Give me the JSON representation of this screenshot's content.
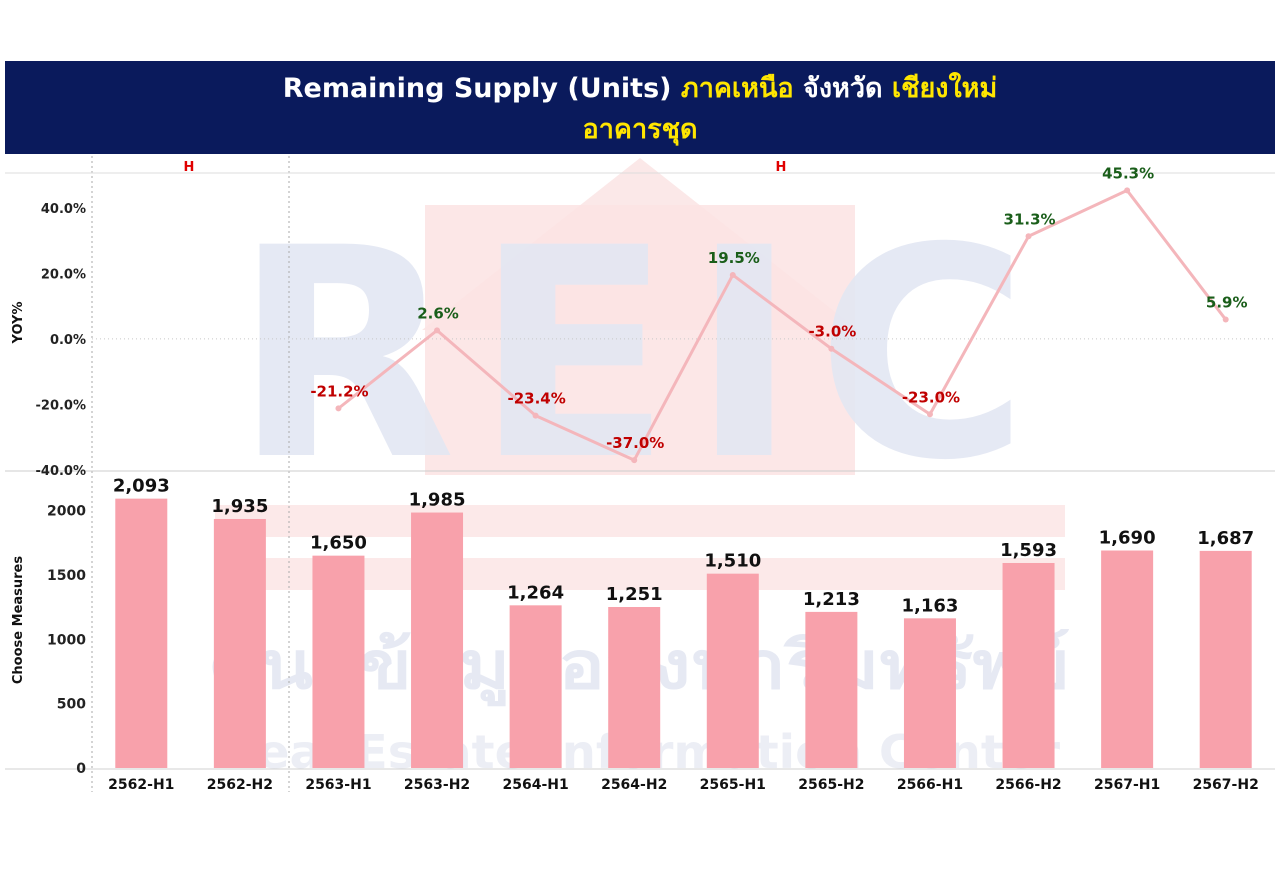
{
  "title": {
    "line1": [
      {
        "text": "Remaining Supply (Units) ",
        "color": "#ffffff"
      },
      {
        "text": "ภาคเหนือ",
        "color": "#ffe600"
      },
      {
        "text": " จังหวัด ",
        "color": "#ffffff"
      },
      {
        "text": "เชียงใหม่",
        "color": "#ffe600"
      }
    ],
    "line2": "อาคารชุด"
  },
  "watermark": {
    "logo": "REIC",
    "thai": "ศูนย์ข้อมูลอสังหาริมทรัพย์",
    "english": "Real Estate Information Center"
  },
  "chart_data": {
    "type": "bar",
    "categories": [
      "2562-H1",
      "2562-H2",
      "2563-H1",
      "2563-H2",
      "2564-H1",
      "2564-H2",
      "2565-H1",
      "2565-H2",
      "2566-H1",
      "2566-H2",
      "2567-H1",
      "2567-H2"
    ],
    "group_headers": [
      {
        "label": "H",
        "from": 0,
        "to": 1
      },
      {
        "label": "H",
        "from": 2,
        "to": 11
      }
    ],
    "yoy": {
      "ylabel": "YOY%",
      "ylim": [
        -40,
        50
      ],
      "ticks": [
        40,
        20,
        0,
        -20,
        -40
      ],
      "tick_labels": [
        "40.0%",
        "20.0%",
        "0.0%",
        "-20.0%",
        "-40.0%"
      ],
      "values": [
        null,
        null,
        -21.2,
        2.6,
        -23.4,
        -37.0,
        19.5,
        -3.0,
        -23.0,
        31.3,
        45.3,
        5.9
      ],
      "labels": [
        "",
        "",
        "-21.2%",
        "2.6%",
        "-23.4%",
        "-37.0%",
        "19.5%",
        "-3.0%",
        "-23.0%",
        "31.3%",
        "45.3%",
        "5.9%"
      ],
      "positive_color": "#1a5e1a",
      "negative_color": "#c00000",
      "line_color": "#f4b6bb"
    },
    "units": {
      "ylabel": "Choose Measures",
      "ylim": [
        0,
        2300
      ],
      "ticks": [
        2000,
        1500,
        1000,
        500,
        0
      ],
      "tick_labels": [
        "2000",
        "1500",
        "1000",
        "500",
        "0"
      ],
      "values": [
        2093,
        1935,
        1650,
        1985,
        1264,
        1251,
        1510,
        1213,
        1163,
        1593,
        1690,
        1687
      ],
      "labels": [
        "2,093",
        "1,935",
        "1,650",
        "1,985",
        "1,264",
        "1,251",
        "1,510",
        "1,213",
        "1,163",
        "1,593",
        "1,690",
        "1,687"
      ],
      "bar_color": "#f8a1ab"
    }
  }
}
